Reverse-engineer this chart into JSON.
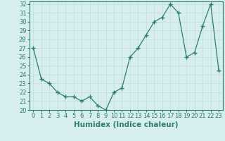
{
  "x": [
    0,
    1,
    2,
    3,
    4,
    5,
    6,
    7,
    8,
    9,
    10,
    11,
    12,
    13,
    14,
    15,
    16,
    17,
    18,
    19,
    20,
    21,
    22,
    23
  ],
  "y": [
    27,
    23.5,
    23,
    22,
    21.5,
    21.5,
    21,
    21.5,
    20.5,
    20,
    22,
    22.5,
    26,
    27,
    28.5,
    30,
    30.5,
    32,
    31,
    26,
    26.5,
    29.5,
    32,
    24.5
  ],
  "xlabel": "Humidex (Indice chaleur)",
  "ylim": [
    20,
    32
  ],
  "xlim": [
    -0.5,
    23.5
  ],
  "yticks": [
    20,
    21,
    22,
    23,
    24,
    25,
    26,
    27,
    28,
    29,
    30,
    31,
    32
  ],
  "xticks": [
    0,
    1,
    2,
    3,
    4,
    5,
    6,
    7,
    8,
    9,
    10,
    11,
    12,
    13,
    14,
    15,
    16,
    17,
    18,
    19,
    20,
    21,
    22,
    23
  ],
  "line_color": "#2e7d6e",
  "marker": "+",
  "bg_color": "#d6eef0",
  "grid_color": "#c8e0e2",
  "label_fontsize": 7.5,
  "tick_fontsize": 6
}
